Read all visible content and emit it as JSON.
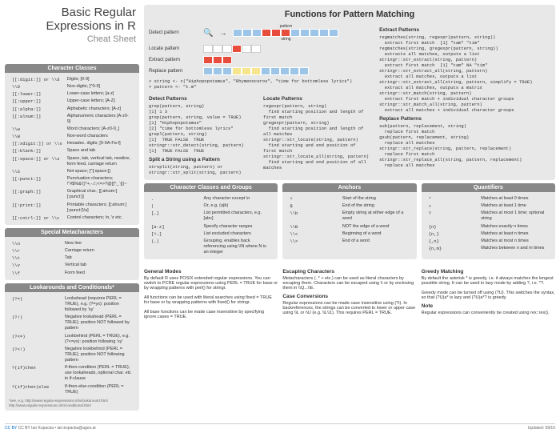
{
  "title": "Basic Regular Expressions in R",
  "subtitle": "Cheat Sheet",
  "charClasses": {
    "hdr": "Character Classes",
    "rows": [
      [
        "[[:digit:]] or \\\\d",
        "Digits; [0-9]"
      ],
      [
        "\\\\D",
        "Non-digits; [^0-9]"
      ],
      [
        "[[:lower:]]",
        "Lower-case letters; [a-z]"
      ],
      [
        "[[:upper:]]",
        "Upper-case letters; [A-Z]"
      ],
      [
        "[[:alpha:]]",
        "Alphabetic characters; [A-z]"
      ],
      [
        "[[:alnum:]]",
        "Alphanumeric characters [A-z0-9]"
      ],
      [
        "\\\\w",
        "Word characters; [A-z0-9_]"
      ],
      [
        "\\\\W",
        "Non-word characters"
      ],
      [
        "[[:xdigit:]] or \\\\x",
        "Hexadec. digits; [0-9A-Fa-f]"
      ],
      [
        "[[:blank:]]",
        "Space and tab"
      ],
      [
        "[[:space:]] or \\\\s",
        "Space, tab, vertical tab, newline, form feed, carriage return"
      ],
      [
        "\\\\S",
        "Not space; [^[:space:]]"
      ],
      [
        "[[:punct:]]",
        "Punctuation characters; !\"#$%&'()*+,-./:;<=>?@[]^_`{|}~"
      ],
      [
        "[[:graph:]]",
        "Graphical char.; [[:alnum:][:punct:]]"
      ],
      [
        "[[:print:]]",
        "Printable characters; [[:alnum:][:punct:]\\\\s]"
      ],
      [
        "[[:cntrl:]] or \\\\c",
        "Control characters; \\n, \\r etc."
      ]
    ]
  },
  "metaChars": {
    "hdr": "Special Metacharacters",
    "rows": [
      [
        "\\\\n",
        "New line"
      ],
      [
        "\\\\r",
        "Carriage return"
      ],
      [
        "\\\\t",
        "Tab"
      ],
      [
        "\\\\v",
        "Vertical tab"
      ],
      [
        "\\\\f",
        "Form feed"
      ]
    ]
  },
  "lookarounds": {
    "hdr": "Lookarounds and Conditionals*",
    "rows": [
      [
        "(?=)",
        "Lookahead (requires PERL = TRUE), e.g. (?=yx): position followed by 'xy'"
      ],
      [
        "(?!)",
        "Negative lookahead (PERL = TRUE); position NOT followed by pattern"
      ],
      [
        "(?<=)",
        "Lookbehind (PERL = TRUE), e.g. (?<=yx): position following 'xy'"
      ],
      [
        "(?<!)",
        "Negative lookbehind (PERL = TRUE); position NOT following pattern"
      ],
      [
        "?(if)then",
        "If-then-condition (PERL = TRUE); use lookaheads, optional char. etc in if-clause"
      ],
      [
        "?(if)then|else",
        "If-then-else-condition (PERL = TRUE)"
      ]
    ],
    "note": "*see, e.g. http://www.regular-expressions.info/lookaround.html http://www.regular-expressions.info/conditional.html"
  },
  "mainHdr": "Functions for Pattern Matching",
  "diagLabels": {
    "detect": "Detect pattern",
    "locate": "Locate pattern",
    "extract": "Extract pattern",
    "replace": "Replace pattern",
    "pattern": "pattern",
    "string": "string"
  },
  "codeEx": "> string <- c(\"Hiphopopotamus\", \"Rhymenoceros\", \"time for bottomless lyrics\")\n> pattern <- \"t.m\"",
  "detect": {
    "hdr": "Detect Patterns",
    "c": "grep(pattern, string)\n[1] 1 3\ngrep(pattern, string, value = TRUE)\n[1] \"Hiphopopotamus\"\n[2] \"time for bottomless lyrics\"\ngrepl(pattern, string)\n[1]  TRUE FALSE  TRUE\nstringr::str_detect(string, pattern)\n[1]  TRUE FALSE  TRUE"
  },
  "split": {
    "hdr": "Split a String using a Pattern",
    "c": "strsplit(string, pattern) or stringr::str_split(string, pattern)"
  },
  "locate": {
    "hdr": "Locate Patterns",
    "c": "regexpr(pattern, string)\n  find starting position and length of first match\ngregexpr(pattern, string)\n  find starting position and length of all matches\nstringr::str_locate(string, pattern)\n  find starting and end position of first match\nstringr::str_locate_all(string, pattern)\n  find starting and end position of all matches"
  },
  "extract": {
    "hdr": "Extract Patterns",
    "c": "regmatches(string, regexpr(pattern, string))\n  extract first match  [1] \"tam\" \"tim\"\nregmatches(string, gregexpr(pattern, string))\n  extracts all matches, outputs a list\nstringr::str_extract(string, pattern)\n  extract first match  [1] \"tam\" NA \"tim\"\nstringr::str_extract_all(string, pattern)\n  extract all matches, outputs a list\nstringr::str_extract_all(string, pattern, simplify = TRUE)\n  extract all matches, outputs a matrix\nstringr::str_match(string, pattern)\n  extract first match + individual character groups\nstringr::str_match_all(string, pattern)\n  extract all matches + individual character groups"
  },
  "replace": {
    "hdr": "Replace Patterns",
    "c": "sub(pattern, replacement, string)\n  replace first match\ngsub(pattern, replacement, string)\n  replace all matches\nstringr::str_replace(string, pattern, replacement)\n  replace first match\nstringr::str_replace_all(string, pattern, replacement)\n  replace all matches"
  },
  "ccg": {
    "hdr": "Character Classes and Groups",
    "rows": [
      [
        ".",
        "Any character except \\n"
      ],
      [
        "|",
        "Or, e.g. (a|b)"
      ],
      [
        "[…]",
        "List permitted characters, e.g. [abc]"
      ],
      [
        "[a-z]",
        "Specify character ranges"
      ],
      [
        "[^…]",
        "List excluded characters"
      ],
      [
        "(…)",
        "Grouping, enables back referencing using \\\\N where N is an integer"
      ]
    ]
  },
  "anchors": {
    "hdr": "Anchors",
    "rows": [
      [
        "^",
        "Start of the string"
      ],
      [
        "$",
        "End of the string"
      ],
      [
        "\\\\b",
        "Empty string at either edge of a word"
      ],
      [
        "\\\\B",
        "NOT the edge of a word"
      ],
      [
        "\\\\<",
        "Beginning of a word"
      ],
      [
        "\\\\>",
        "End of a word"
      ]
    ]
  },
  "quant": {
    "hdr": "Quantifiers",
    "rows": [
      [
        "*",
        "Matches at least 0 times"
      ],
      [
        "+",
        "Matches at least 1 time"
      ],
      [
        "?",
        "Matches at most 1 time; optional string"
      ],
      [
        "{n}",
        "Matches exactly n times"
      ],
      [
        "{n,}",
        "Matches at least n times"
      ],
      [
        "{,n}",
        "Matches at most n times"
      ],
      [
        "{n,m}",
        "Matches between n and m times"
      ]
    ]
  },
  "modes": {
    "hdr": "General Modes",
    "txt": "By default R uses POSIX extended regular expressions. You can switch to PCRE regular expressions using PERL = TRUE for base or by wrapping patterns with perl() for stringr.\n\nAll functions can be used with literal searches using fixed = TRUE for base or by wrapping patterns with fixed() for stringr.\n\nAll base functions can be made case insensitive by specifying ignore.cases = TRUE."
  },
  "escape": {
    "hdr": "Escaping Characters",
    "txt": "Metacharacters (. * + etc.) can be used as literal characters by escaping them. Characters can be escaped using \\\\ or by enclosing them in \\\\Q...\\\\E."
  },
  "case": {
    "hdr": "Case Conversions",
    "txt": "Regular expressions can be made case insensitive using (?i). In backreferences, the strings can be converted to lower or upper case using \\\\L or \\\\U (e.g. \\\\L\\\\1). This requires PERL = TRUE."
  },
  "greedy": {
    "hdr": "Greedy Matching",
    "txt": "By default the asterisk * is greedy, i.e. it always matches the longest possible string. It can be used in lazy mode by adding ?, i.e. *?.\n\nGreedy mode can be turned off using (?U). This switches the syntax, so that (?U)a* is lazy and (?U)a*? is greedy."
  },
  "note": {
    "hdr": "Note",
    "txt": "Regular expressions can conveniently be created using rex::rex()."
  },
  "footer": {
    "left": "CC BY Ian Kopacka • ian.kopacka@ages.at",
    "right": "Updated: 09/16"
  }
}
